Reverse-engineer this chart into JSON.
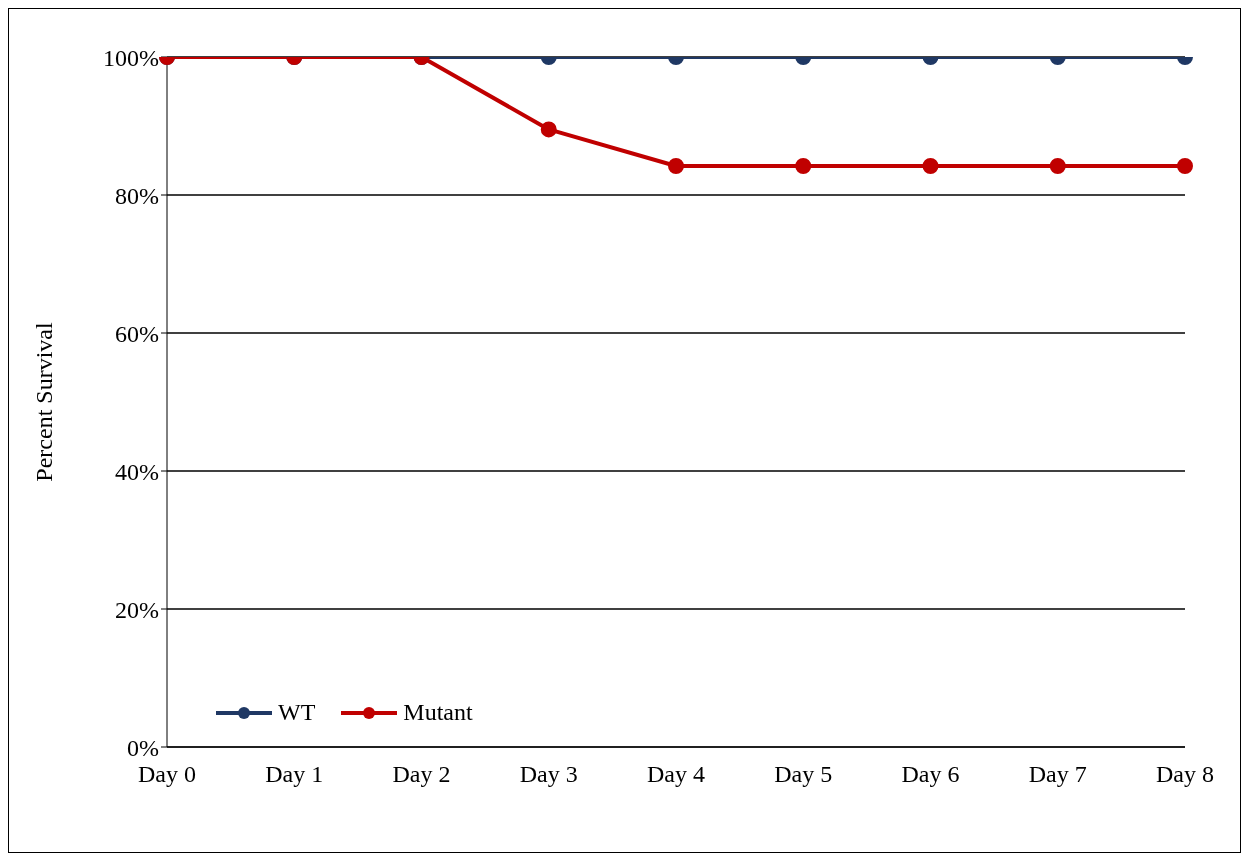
{
  "chart_data": {
    "type": "line",
    "ylabel": "Percent Survival",
    "categories": [
      "Day 0",
      "Day 1",
      "Day 2",
      "Day 3",
      "Day 4",
      "Day 5",
      "Day 6",
      "Day 7",
      "Day 8"
    ],
    "series": [
      {
        "name": "WT",
        "color": "#1f3864",
        "values": [
          100,
          100,
          100,
          100,
          100,
          100,
          100,
          100,
          100
        ]
      },
      {
        "name": "Mutant",
        "color": "#c00000",
        "values": [
          100,
          100,
          100,
          89.5,
          84.2,
          84.2,
          84.2,
          84.2,
          84.2
        ]
      }
    ],
    "ylim": [
      0,
      100
    ],
    "yticks": [
      {
        "value": 0,
        "label": "0%"
      },
      {
        "value": 20,
        "label": "20%"
      },
      {
        "value": 40,
        "label": "40%"
      },
      {
        "value": 60,
        "label": "60%"
      },
      {
        "value": 80,
        "label": "80%"
      },
      {
        "value": 100,
        "label": "100%"
      }
    ],
    "grid": "y",
    "legend": "bottom left",
    "marker": "circle",
    "line_style": "solid"
  }
}
